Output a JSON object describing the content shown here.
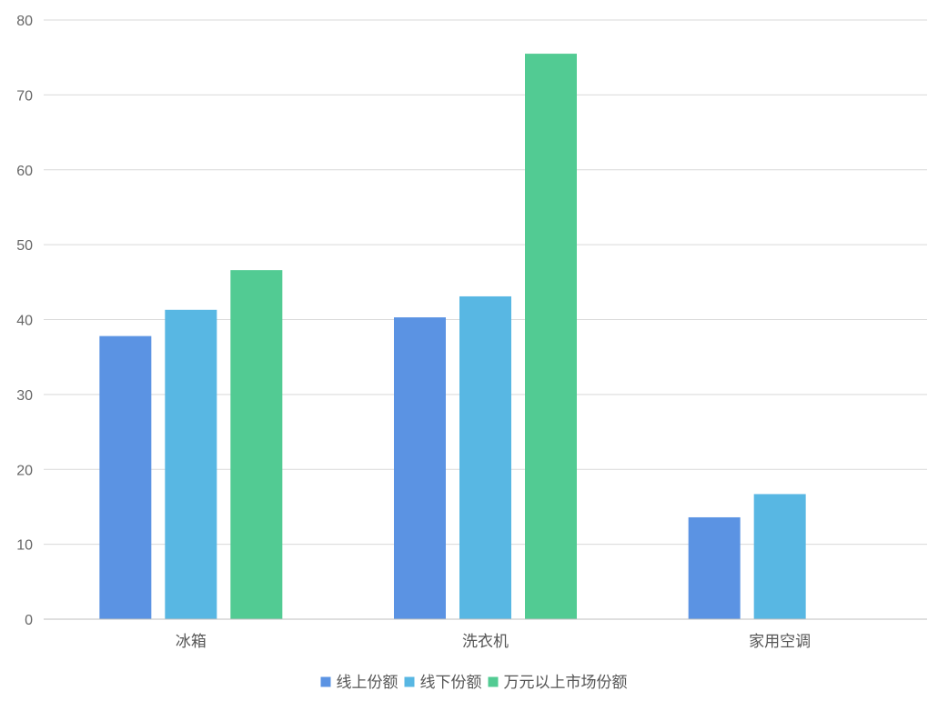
{
  "chart_data": {
    "type": "bar",
    "categories": [
      "冰箱",
      "洗衣机",
      "家用空调"
    ],
    "series": [
      {
        "name": "线上份额",
        "values": [
          37.8,
          40.3,
          13.6
        ],
        "color": "#5B93E3"
      },
      {
        "name": "线下份额",
        "values": [
          41.3,
          43.1,
          16.7
        ],
        "color": "#58B7E3"
      },
      {
        "name": "万元以上市场份额",
        "values": [
          46.6,
          75.5,
          null
        ],
        "color": "#52CB93"
      }
    ],
    "title": "",
    "xlabel": "",
    "ylabel": "",
    "ylim": [
      0,
      80
    ],
    "yticks": [
      0,
      10,
      20,
      30,
      40,
      50,
      60,
      70,
      80
    ],
    "grid": true,
    "legend_position": "bottom"
  }
}
